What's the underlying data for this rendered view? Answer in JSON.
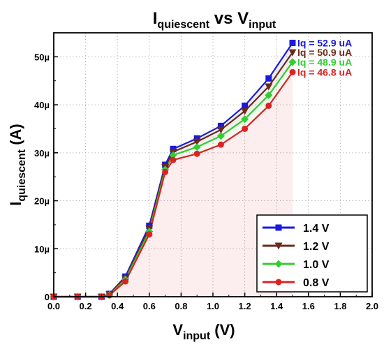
{
  "chart_data": {
    "type": "line",
    "title": {
      "main": "I",
      "sub": "quiescent",
      "mid": " vs V",
      "sub2": "input"
    },
    "xlabel": {
      "main": "V",
      "sub": "input",
      "suffix": " (V)"
    },
    "ylabel": {
      "main": "I",
      "sub": "quiescent",
      "suffix": " (A)"
    },
    "xlim": [
      0,
      2.0
    ],
    "ylim": [
      0,
      55
    ],
    "x_ticks": [
      "0.0",
      "0.2",
      "0.4",
      "0.6",
      "0.8",
      "1.0",
      "1.2",
      "1.4",
      "1.6",
      "1.8",
      "2.0"
    ],
    "y_ticks": [
      {
        "value": 0,
        "label": "0"
      },
      {
        "value": 10,
        "label": "10µ"
      },
      {
        "value": 20,
        "label": "20µ"
      },
      {
        "value": 30,
        "label": "30µ"
      },
      {
        "value": 40,
        "label": "40µ"
      },
      {
        "value": 50,
        "label": "50µ"
      }
    ],
    "grid": true,
    "legend_position": "bottom-right",
    "series": [
      {
        "name": "1.4 V",
        "color": "#1a1adc",
        "marker": "square",
        "annotation": "Iq = 52.9 uA",
        "points": [
          [
            0,
            0
          ],
          [
            0.15,
            0
          ],
          [
            0.3,
            0
          ],
          [
            0.35,
            0.6
          ],
          [
            0.45,
            4.2
          ],
          [
            0.6,
            14.8
          ],
          [
            0.7,
            27.5
          ],
          [
            0.75,
            30.8
          ],
          [
            0.9,
            33.0
          ],
          [
            1.05,
            35.6
          ],
          [
            1.2,
            39.8
          ],
          [
            1.35,
            45.5
          ],
          [
            1.5,
            52.9
          ]
        ]
      },
      {
        "name": "1.2 V",
        "color": "#6b2a1a",
        "marker": "triangle-down",
        "annotation": "Iq = 50.9 uA",
        "points": [
          [
            0,
            0
          ],
          [
            0.15,
            0
          ],
          [
            0.3,
            0
          ],
          [
            0.35,
            0.5
          ],
          [
            0.45,
            3.9
          ],
          [
            0.6,
            14.2
          ],
          [
            0.7,
            27.0
          ],
          [
            0.75,
            30.2
          ],
          [
            0.9,
            32.3
          ],
          [
            1.05,
            34.8
          ],
          [
            1.2,
            38.7
          ],
          [
            1.35,
            43.8
          ],
          [
            1.5,
            50.9
          ]
        ]
      },
      {
        "name": "1.0 V",
        "color": "#33cc33",
        "marker": "diamond",
        "annotation": "Iq = 48.9 uA",
        "points": [
          [
            0,
            0
          ],
          [
            0.15,
            0
          ],
          [
            0.3,
            0
          ],
          [
            0.35,
            0.4
          ],
          [
            0.45,
            3.6
          ],
          [
            0.6,
            13.6
          ],
          [
            0.7,
            26.5
          ],
          [
            0.75,
            29.5
          ],
          [
            0.9,
            31.2
          ],
          [
            1.05,
            33.5
          ],
          [
            1.2,
            37.0
          ],
          [
            1.35,
            42.0
          ],
          [
            1.5,
            48.9
          ]
        ]
      },
      {
        "name": "0.8 V",
        "color": "#dd2222",
        "marker": "circle",
        "annotation": "Iq = 46.8 uA",
        "points": [
          [
            0,
            0
          ],
          [
            0.15,
            0
          ],
          [
            0.3,
            0
          ],
          [
            0.35,
            0.3
          ],
          [
            0.45,
            3.2
          ],
          [
            0.6,
            13.0
          ],
          [
            0.7,
            26.0
          ],
          [
            0.75,
            28.5
          ],
          [
            0.9,
            29.8
          ],
          [
            1.05,
            31.7
          ],
          [
            1.2,
            35.0
          ],
          [
            1.35,
            39.8
          ],
          [
            1.5,
            46.8
          ]
        ]
      }
    ]
  }
}
